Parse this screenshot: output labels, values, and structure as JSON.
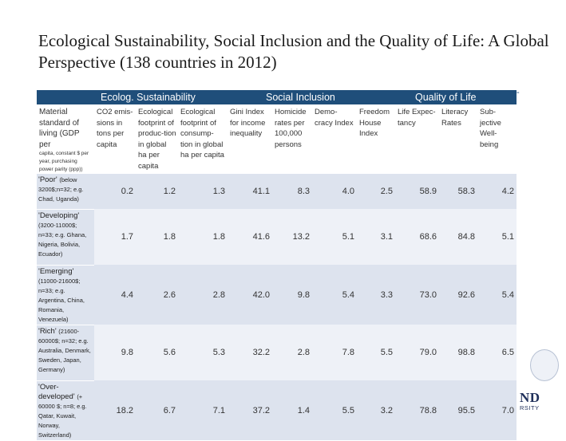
{
  "title": "Ecological Sustainability, Social Inclusion and the Quality of Life: A Global Perspective (138 countries in 2012)",
  "groups": [
    "Ecolog. Sustainability",
    "Social Inclusion",
    "Quality of Life"
  ],
  "headers": [
    {
      "main": "Material standard of living (GDP per",
      "sub": "capita, constant $ per year, purchasing power parity (ppp))"
    },
    {
      "main": "CO2 emis-sions in tons per capita",
      "sub": ""
    },
    {
      "main": "Ecological footprint of produc-tion in global ha per capita",
      "sub": ""
    },
    {
      "main": "Ecological footprint of consump-tion in global ha per capita",
      "sub": ""
    },
    {
      "main": "Gini Index for income inequality",
      "sub": ""
    },
    {
      "main": "Homicide rates per 100,000 persons",
      "sub": ""
    },
    {
      "main": "Demo-cracy Index",
      "sub": ""
    },
    {
      "main": "Freedom House Index",
      "sub": ""
    },
    {
      "main": "Life Expec-tancy",
      "sub": ""
    },
    {
      "main": "Literacy Rates",
      "sub": ""
    },
    {
      "main": "Sub-jective Well-being",
      "sub": ""
    }
  ],
  "rows": [
    {
      "label": "'Poor'",
      "detail": "(below 3200$;n=32; e.g. Chad, Uganda)",
      "values": [
        "0.2",
        "1.2",
        "1.3",
        "41.1",
        "8.3",
        "4.0",
        "2.5",
        "58.9",
        "58.3",
        "4.2"
      ]
    },
    {
      "label": "'Developing'",
      "detail": "(3200-11000$; n=33; e.g. Ghana, Nigeria, Bolivia, Ecuador)",
      "values": [
        "1.7",
        "1.8",
        "1.8",
        "41.6",
        "13.2",
        "5.1",
        "3.1",
        "68.6",
        "84.8",
        "5.1"
      ]
    },
    {
      "label": "'Emerging'",
      "detail": "(11000-21600$; n=33; e.g. Argentina, China, Romania, Venezuela)",
      "values": [
        "4.4",
        "2.6",
        "2.8",
        "42.0",
        "9.8",
        "5.4",
        "3.3",
        "73.0",
        "92.6",
        "5.4"
      ]
    },
    {
      "label": "'Rich'",
      "detail": "(21600-60000$; n=32; e.g. Australia, Denmark, Sweden, Japan, Germany)",
      "values": [
        "9.8",
        "5.6",
        "5.3",
        "32.2",
        "2.8",
        "7.8",
        "5.5",
        "79.0",
        "98.8",
        "6.5"
      ]
    },
    {
      "label": "'Over-developed'",
      "detail": "(+ 60000 $; n=8; e.g. Qatar, Kuwait, Norway, Switzerland)",
      "values": [
        "18.2",
        "6.7",
        "7.1",
        "37.2",
        "1.4",
        "5.5",
        "3.2",
        "78.8",
        "95.5",
        "7.0"
      ]
    }
  ],
  "logo": {
    "text": "ND",
    "sub": "RSITY"
  }
}
